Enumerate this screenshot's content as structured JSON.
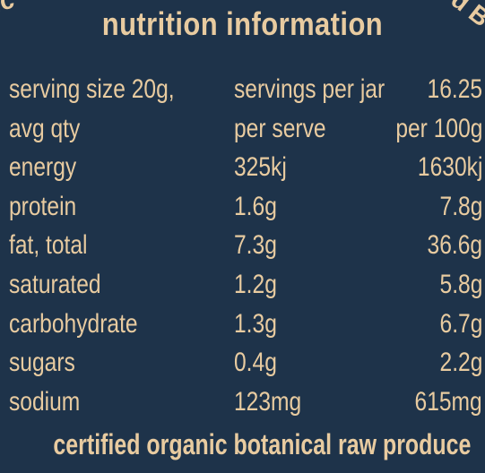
{
  "header": {
    "arc_left": "ic",
    "arc_right": "d B",
    "title": "nutrition information"
  },
  "table": {
    "rows": [
      {
        "label": "serving size 20g,",
        "per_serve": "servings per jar",
        "per_100g": "16.25"
      },
      {
        "label": "avg qty",
        "per_serve": "per serve",
        "per_100g": "per 100g"
      },
      {
        "label": "energy",
        "per_serve": "325kj",
        "per_100g": "1630kj"
      },
      {
        "label": "protein",
        "per_serve": "1.6g",
        "per_100g": "7.8g"
      },
      {
        "label": "fat, total",
        "per_serve": "7.3g",
        "per_100g": "36.6g"
      },
      {
        "label": "saturated",
        "per_serve": "1.2g",
        "per_100g": "5.8g"
      },
      {
        "label": "carbohydrate",
        "per_serve": "1.3g",
        "per_100g": "6.7g"
      },
      {
        "label": "sugars",
        "per_serve": "0.4g",
        "per_100g": "2.2g"
      },
      {
        "label": "sodium",
        "per_serve": "123mg",
        "per_100g": "615mg"
      }
    ]
  },
  "footer": {
    "text": "certified organic botanical raw produce"
  },
  "colors": {
    "background": "#1e334a",
    "text": "#e8cba0"
  }
}
